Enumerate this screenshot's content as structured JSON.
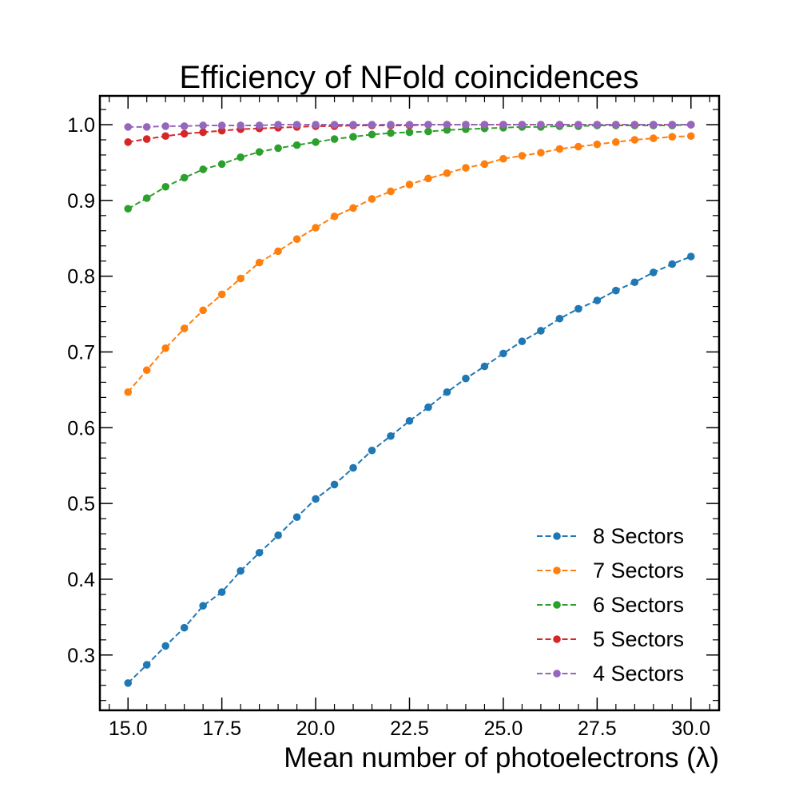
{
  "chart_data": {
    "type": "line",
    "title": "Efficiency of NFold coincidences",
    "xlabel": "Mean number of photoelectrons (λ)",
    "ylabel": "",
    "xlim": [
      14.25,
      30.75
    ],
    "ylim": [
      0.227,
      1.038
    ],
    "xticks": [
      15.0,
      17.5,
      20.0,
      22.5,
      25.0,
      27.5,
      30.0
    ],
    "xtick_labels": [
      "15.0",
      "17.5",
      "20.0",
      "22.5",
      "25.0",
      "27.5",
      "30.0"
    ],
    "yticks": [
      0.3,
      0.4,
      0.5,
      0.6,
      0.7,
      0.8,
      0.9,
      1.0
    ],
    "ytick_labels": [
      "0.3",
      "0.4",
      "0.5",
      "0.6",
      "0.7",
      "0.8",
      "0.9",
      "1.0"
    ],
    "grid": false,
    "legend_position": "lower-right",
    "x": [
      15.0,
      15.5,
      16.0,
      16.5,
      17.0,
      17.5,
      18.0,
      18.5,
      19.0,
      19.5,
      20.0,
      20.5,
      21.0,
      21.5,
      22.0,
      22.5,
      23.0,
      23.5,
      24.0,
      24.5,
      25.0,
      25.5,
      26.0,
      26.5,
      27.0,
      27.5,
      28.0,
      28.5,
      29.0,
      29.5,
      30.0
    ],
    "series": [
      {
        "name": "8 Sectors",
        "color": "#1f77b4",
        "values": [
          0.263,
          0.287,
          0.312,
          0.336,
          0.365,
          0.383,
          0.411,
          0.435,
          0.458,
          0.482,
          0.506,
          0.525,
          0.547,
          0.57,
          0.589,
          0.609,
          0.627,
          0.647,
          0.665,
          0.681,
          0.698,
          0.714,
          0.728,
          0.744,
          0.757,
          0.768,
          0.781,
          0.792,
          0.805,
          0.816,
          0.826
        ]
      },
      {
        "name": "7 Sectors",
        "color": "#ff7f0e",
        "values": [
          0.647,
          0.676,
          0.705,
          0.731,
          0.755,
          0.776,
          0.797,
          0.818,
          0.833,
          0.849,
          0.864,
          0.879,
          0.89,
          0.902,
          0.912,
          0.921,
          0.929,
          0.936,
          0.943,
          0.948,
          0.955,
          0.959,
          0.963,
          0.968,
          0.971,
          0.974,
          0.977,
          0.98,
          0.982,
          0.984,
          0.985
        ]
      },
      {
        "name": "6 Sectors",
        "color": "#2ca02c",
        "values": [
          0.889,
          0.903,
          0.918,
          0.93,
          0.941,
          0.948,
          0.957,
          0.964,
          0.969,
          0.973,
          0.977,
          0.981,
          0.984,
          0.987,
          0.989,
          0.99,
          0.991,
          0.993,
          0.994,
          0.995,
          0.996,
          0.997,
          0.997,
          0.998,
          0.998,
          0.999,
          0.999,
          0.999,
          0.999,
          0.999,
          1.0
        ]
      },
      {
        "name": "5 Sectors",
        "color": "#d62728",
        "values": [
          0.977,
          0.981,
          0.985,
          0.988,
          0.99,
          0.992,
          0.994,
          0.995,
          0.996,
          0.997,
          0.998,
          0.998,
          0.999,
          0.999,
          0.999,
          0.999,
          1.0,
          1.0,
          1.0,
          1.0,
          1.0,
          1.0,
          1.0,
          1.0,
          1.0,
          1.0,
          1.0,
          1.0,
          1.0,
          1.0,
          1.0
        ]
      },
      {
        "name": "4 Sectors",
        "color": "#9467bd",
        "values": [
          0.997,
          0.997,
          0.998,
          0.998,
          0.999,
          0.999,
          0.999,
          0.999,
          1.0,
          1.0,
          1.0,
          1.0,
          1.0,
          1.0,
          1.0,
          1.0,
          1.0,
          1.0,
          1.0,
          1.0,
          1.0,
          1.0,
          1.0,
          1.0,
          1.0,
          1.0,
          1.0,
          1.0,
          1.0,
          1.0,
          1.0
        ]
      }
    ]
  }
}
